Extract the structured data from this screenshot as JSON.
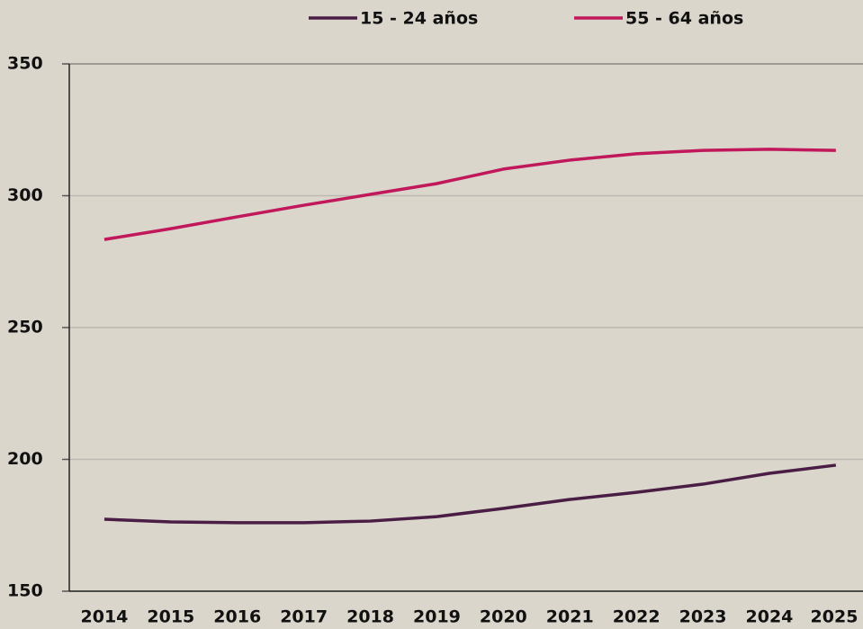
{
  "chart_data": {
    "type": "line",
    "categories": [
      "2014",
      "2015",
      "2016",
      "2017",
      "2018",
      "2019",
      "2020",
      "2021",
      "2022",
      "2023",
      "2024",
      "2025"
    ],
    "series": [
      {
        "name": "15 - 24 años",
        "color": "#4a1d45",
        "values": [
          177.3,
          176.3,
          176,
          176,
          176.6,
          178.3,
          181.4,
          184.8,
          187.5,
          190.6,
          194.7,
          197.8
        ]
      },
      {
        "name": "55 - 64 años",
        "color": "#c0185a",
        "values": [
          283.4,
          287.5,
          292,
          296.4,
          300.5,
          304.6,
          310.1,
          313.5,
          315.9,
          317.2,
          317.6,
          317.2
        ]
      }
    ],
    "ylim": [
      150,
      350
    ],
    "yticks": [
      150,
      200,
      250,
      300,
      350
    ],
    "grid": true
  }
}
